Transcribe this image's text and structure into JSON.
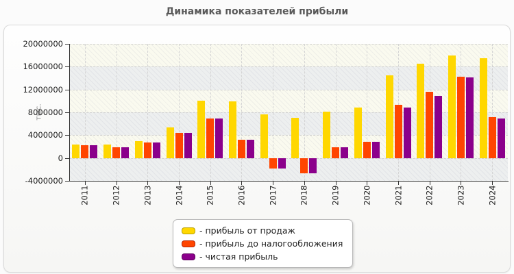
{
  "title": "Динамика показателей прибыли",
  "y_axis_title": "тыс.",
  "chart_data": {
    "type": "bar",
    "title": "Динамика показателей прибыли",
    "ylabel": "тыс.",
    "categories": [
      "2011",
      "2012",
      "2013",
      "2014",
      "2015",
      "2016",
      "2017",
      "2018",
      "2019",
      "2020",
      "2021",
      "2022",
      "2023",
      "2024"
    ],
    "series": [
      {
        "name": "прибыль от продаж",
        "color": "#FFD700",
        "border_color": "#B8A000",
        "values": [
          2400000,
          2400000,
          3000000,
          5400000,
          10000000,
          9900000,
          7600000,
          7100000,
          8100000,
          8900000,
          14500000,
          16500000,
          18000000,
          17500000
        ]
      },
      {
        "name": "прибыль до налогообложения",
        "color": "#FF4500",
        "border_color": "#B22200",
        "values": [
          2200000,
          1850000,
          2700000,
          4400000,
          6900000,
          3200000,
          -1800000,
          -2700000,
          1850000,
          2900000,
          9300000,
          11600000,
          14300000,
          7200000
        ]
      },
      {
        "name": "чистая прибыль",
        "color": "#8B008B",
        "border_color": "#5C005C",
        "values": [
          2200000,
          1850000,
          2700000,
          4400000,
          6900000,
          3200000,
          -1800000,
          -2700000,
          1850000,
          2900000,
          8800000,
          10900000,
          14100000,
          6900000
        ]
      }
    ],
    "ylim": [
      -4000000,
      20000000
    ],
    "ytick_step": 4000000,
    "ytick_values": [
      20000000,
      16000000,
      12000000,
      8000000,
      4000000,
      0,
      -4000000
    ],
    "ytick_labels": [
      "20000000",
      "16000000",
      "12000000",
      "8000000",
      "4000000",
      "0",
      "-4000000"
    ],
    "legend_labels": [
      "- прибыль от продаж",
      "- прибыль до налогообложения",
      "- чистая прибыль"
    ],
    "legend_position": "bottom-center",
    "grid": true
  }
}
